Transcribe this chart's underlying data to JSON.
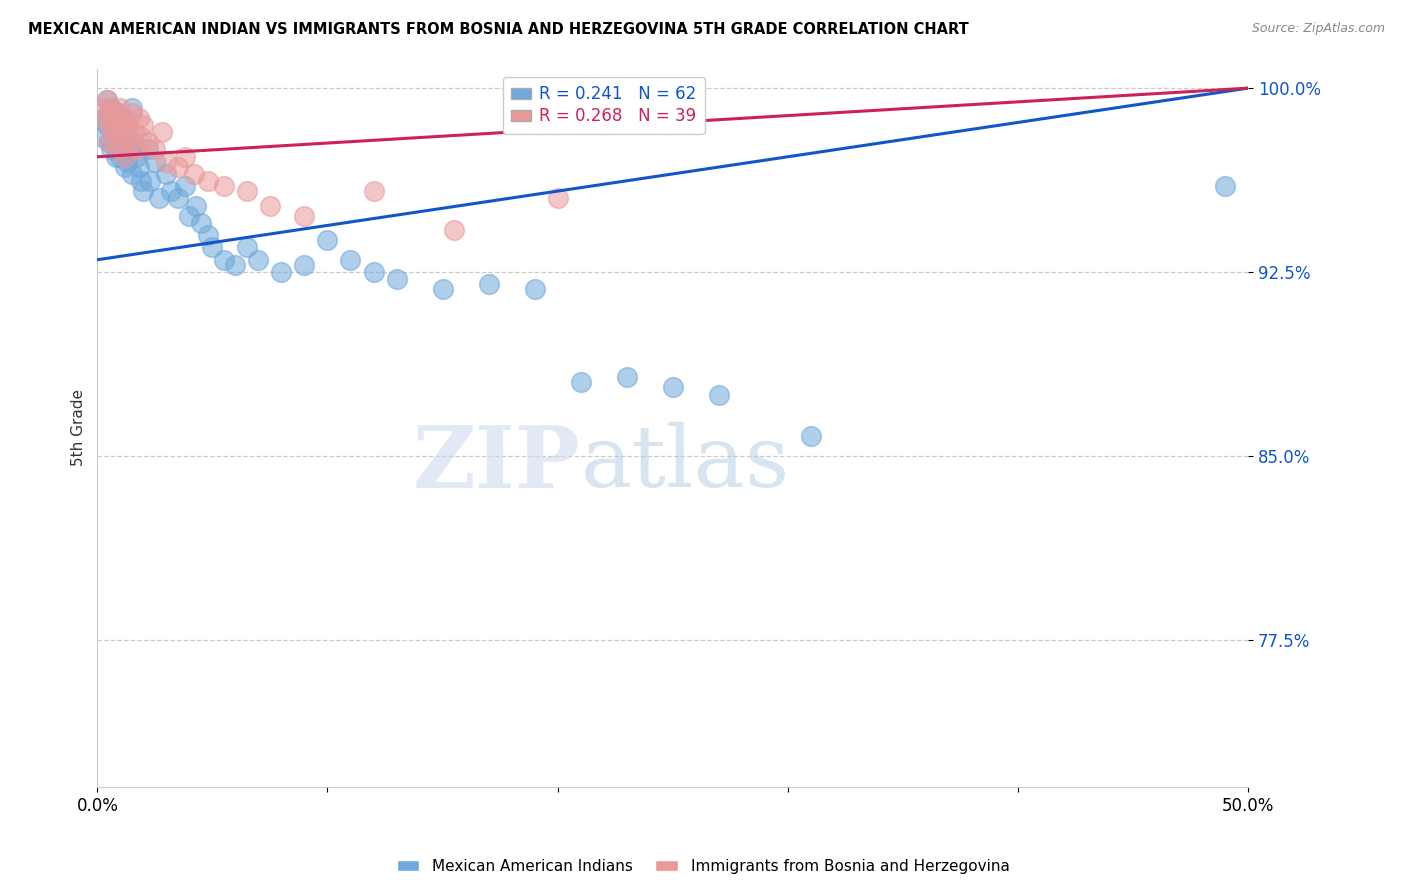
{
  "title": "MEXICAN AMERICAN INDIAN VS IMMIGRANTS FROM BOSNIA AND HERZEGOVINA 5TH GRADE CORRELATION CHART",
  "source": "Source: ZipAtlas.com",
  "ylabel": "5th Grade",
  "xlim": [
    0.0,
    0.5
  ],
  "ylim": [
    0.715,
    1.008
  ],
  "blue_R": 0.241,
  "blue_N": 62,
  "pink_R": 0.268,
  "pink_N": 39,
  "blue_color": "#6fa8dc",
  "pink_color": "#ea9999",
  "blue_line_color": "#1155cc",
  "pink_line_color": "#cc2255",
  "watermark_zip": "ZIP",
  "watermark_atlas": "atlas",
  "legend_blue_label": "Mexican American Indians",
  "legend_pink_label": "Immigrants from Bosnia and Herzegovina",
  "ytick_positions": [
    0.775,
    0.85,
    0.925,
    1.0
  ],
  "ytick_labels": [
    "77.5%",
    "85.0%",
    "92.5%",
    "100.0%"
  ],
  "blue_scatter_x": [
    0.002,
    0.003,
    0.004,
    0.004,
    0.005,
    0.005,
    0.006,
    0.006,
    0.007,
    0.007,
    0.008,
    0.008,
    0.009,
    0.009,
    0.01,
    0.01,
    0.011,
    0.011,
    0.012,
    0.012,
    0.013,
    0.013,
    0.014,
    0.015,
    0.015,
    0.016,
    0.017,
    0.018,
    0.019,
    0.02,
    0.022,
    0.023,
    0.025,
    0.027,
    0.03,
    0.032,
    0.035,
    0.038,
    0.04,
    0.043,
    0.045,
    0.048,
    0.05,
    0.055,
    0.06,
    0.065,
    0.07,
    0.08,
    0.09,
    0.1,
    0.11,
    0.12,
    0.13,
    0.15,
    0.17,
    0.19,
    0.21,
    0.23,
    0.25,
    0.27,
    0.31,
    0.49
  ],
  "blue_scatter_y": [
    0.98,
    0.988,
    0.985,
    0.995,
    0.99,
    0.978,
    0.992,
    0.975,
    0.988,
    0.982,
    0.985,
    0.972,
    0.99,
    0.978,
    0.985,
    0.972,
    0.988,
    0.975,
    0.982,
    0.968,
    0.985,
    0.97,
    0.975,
    0.992,
    0.965,
    0.978,
    0.972,
    0.968,
    0.962,
    0.958,
    0.975,
    0.962,
    0.97,
    0.955,
    0.965,
    0.958,
    0.955,
    0.96,
    0.948,
    0.952,
    0.945,
    0.94,
    0.935,
    0.93,
    0.928,
    0.935,
    0.93,
    0.925,
    0.928,
    0.938,
    0.93,
    0.925,
    0.922,
    0.918,
    0.92,
    0.918,
    0.88,
    0.882,
    0.878,
    0.875,
    0.858,
    0.96
  ],
  "pink_scatter_x": [
    0.002,
    0.003,
    0.004,
    0.005,
    0.005,
    0.006,
    0.007,
    0.007,
    0.008,
    0.008,
    0.009,
    0.01,
    0.01,
    0.011,
    0.012,
    0.012,
    0.013,
    0.014,
    0.015,
    0.016,
    0.017,
    0.018,
    0.019,
    0.02,
    0.022,
    0.025,
    0.028,
    0.03,
    0.035,
    0.038,
    0.042,
    0.048,
    0.055,
    0.065,
    0.075,
    0.09,
    0.12,
    0.155,
    0.2
  ],
  "pink_scatter_y": [
    0.992,
    0.988,
    0.995,
    0.985,
    0.978,
    0.992,
    0.988,
    0.982,
    0.99,
    0.978,
    0.985,
    0.992,
    0.975,
    0.988,
    0.982,
    0.972,
    0.985,
    0.978,
    0.99,
    0.982,
    0.975,
    0.988,
    0.98,
    0.985,
    0.978,
    0.975,
    0.982,
    0.97,
    0.968,
    0.972,
    0.965,
    0.962,
    0.96,
    0.958,
    0.952,
    0.948,
    0.958,
    0.942,
    0.955
  ]
}
